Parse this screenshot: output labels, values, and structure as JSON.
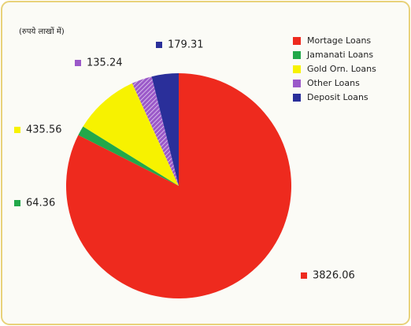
{
  "chart_data": {
    "type": "pie",
    "subtitle": "(रुपये लाखों में)",
    "categories": [
      "Mortage Loans",
      "Jamanati Loans",
      "Gold Orn. Loans",
      "Other Loans",
      "Deposit Loans"
    ],
    "values": [
      3826.06,
      64.36,
      435.56,
      135.24,
      179.31
    ],
    "colors": [
      "#ee2a1e",
      "#22a84a",
      "#f7f200",
      "#9b59c9",
      "#2a2f9a"
    ],
    "legend": "top-right"
  }
}
